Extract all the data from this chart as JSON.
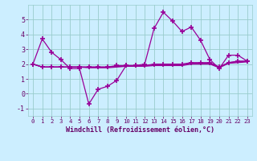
{
  "xlabel": "Windchill (Refroidissement éolien,°C)",
  "x_hours": [
    0,
    1,
    2,
    3,
    4,
    5,
    6,
    7,
    8,
    9,
    10,
    11,
    12,
    13,
    14,
    15,
    16,
    17,
    18,
    19,
    20,
    21,
    22,
    23
  ],
  "line1_y": [
    2.0,
    3.7,
    2.8,
    2.3,
    1.7,
    1.7,
    -0.7,
    0.3,
    0.5,
    0.9,
    1.9,
    1.9,
    2.0,
    4.4,
    5.5,
    4.9,
    4.2,
    4.5,
    3.6,
    2.3,
    1.7,
    2.6,
    2.6,
    2.2
  ],
  "line2_y": [
    2.0,
    1.8,
    1.8,
    1.8,
    1.8,
    1.8,
    1.8,
    1.8,
    1.8,
    1.9,
    1.9,
    1.9,
    1.9,
    2.0,
    2.0,
    2.0,
    2.0,
    2.1,
    2.1,
    2.1,
    1.8,
    2.1,
    2.2,
    2.2
  ],
  "line3_y": [
    2.0,
    1.8,
    1.8,
    1.8,
    1.8,
    1.8,
    1.75,
    1.75,
    1.75,
    1.8,
    1.85,
    1.85,
    1.85,
    1.9,
    1.9,
    1.9,
    1.9,
    2.0,
    2.0,
    2.0,
    1.75,
    2.05,
    2.1,
    2.15
  ],
  "line4_y": [
    2.0,
    1.8,
    1.8,
    1.8,
    1.8,
    1.8,
    1.8,
    1.8,
    1.8,
    1.85,
    1.85,
    1.85,
    1.9,
    1.95,
    1.95,
    1.95,
    1.95,
    2.05,
    2.05,
    2.05,
    1.8,
    2.1,
    2.15,
    2.2
  ],
  "ylim": [
    -1.5,
    6.0
  ],
  "yticks": [
    -1,
    0,
    1,
    2,
    3,
    4,
    5
  ],
  "bg_color": "#cceeff",
  "line_color": "#990099",
  "grid_color": "#99cccc",
  "figsize": [
    3.2,
    2.0
  ],
  "dpi": 100
}
